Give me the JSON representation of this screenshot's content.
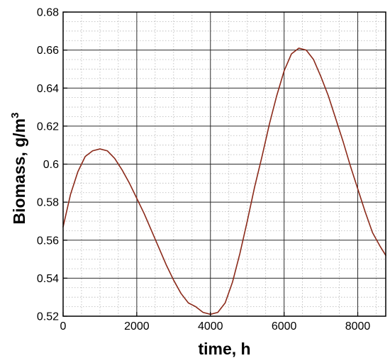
{
  "chart_data": {
    "type": "line",
    "xlabel": "time, h",
    "ylabel_main": "Biomass, g/m",
    "ylabel_sup": "3",
    "xlim": [
      0,
      8760
    ],
    "ylim": [
      0.52,
      0.68
    ],
    "x_ticks": [
      0,
      2000,
      4000,
      6000,
      8000
    ],
    "x_tick_labels": [
      "0",
      "2000",
      "4000",
      "6000",
      "8000"
    ],
    "y_ticks": [
      0.52,
      0.54,
      0.56,
      0.58,
      0.6,
      0.62,
      0.64,
      0.66,
      0.68
    ],
    "y_tick_labels": [
      "0.52",
      "0.54",
      "0.56",
      "0.58",
      "0.6",
      "0.62",
      "0.64",
      "0.66",
      "0.68"
    ],
    "grid": "on",
    "minor_grid": "dotted",
    "series": [
      {
        "color": "#8b2a1a",
        "x": [
          0,
          200,
          400,
          600,
          800,
          1000,
          1200,
          1400,
          1600,
          1800,
          2000,
          2200,
          2400,
          2600,
          2800,
          3000,
          3200,
          3400,
          3600,
          3800,
          4000,
          4200,
          4400,
          4600,
          4800,
          5000,
          5200,
          5400,
          5600,
          5800,
          6000,
          6200,
          6400,
          6600,
          6800,
          7000,
          7200,
          7400,
          7600,
          7800,
          8000,
          8200,
          8400,
          8600,
          8760
        ],
        "y": [
          0.567,
          0.584,
          0.596,
          0.604,
          0.607,
          0.608,
          0.607,
          0.603,
          0.597,
          0.59,
          0.582,
          0.574,
          0.565,
          0.556,
          0.547,
          0.539,
          0.532,
          0.527,
          0.525,
          0.522,
          0.521,
          0.522,
          0.527,
          0.538,
          0.553,
          0.57,
          0.588,
          0.604,
          0.621,
          0.636,
          0.649,
          0.658,
          0.661,
          0.66,
          0.655,
          0.646,
          0.636,
          0.624,
          0.612,
          0.599,
          0.587,
          0.575,
          0.564,
          0.557,
          0.552
        ]
      }
    ]
  }
}
